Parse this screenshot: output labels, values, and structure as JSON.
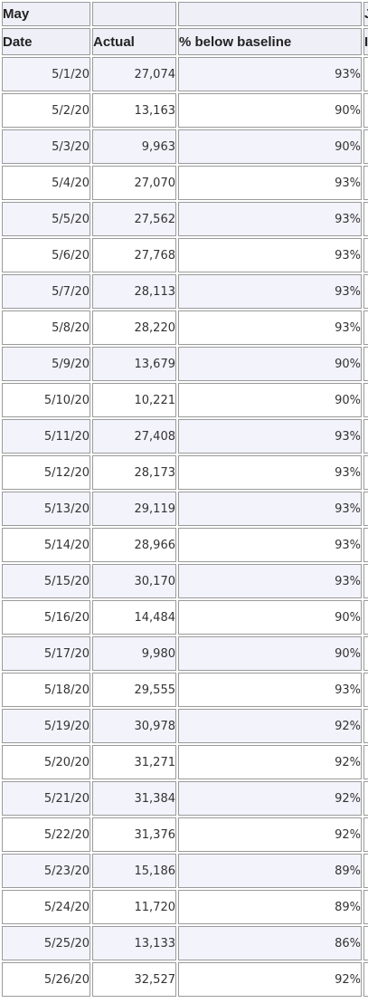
{
  "header": {
    "month": "May",
    "col_date": "Date",
    "col_actual": "Actual",
    "col_pct": "% below baseline",
    "extra_top": "J",
    "extra_bottom": "I"
  },
  "rows": [
    {
      "date": "5/1/20",
      "actual": "27,074",
      "pct": "93%"
    },
    {
      "date": "5/2/20",
      "actual": "13,163",
      "pct": "90%"
    },
    {
      "date": "5/3/20",
      "actual": "9,963",
      "pct": "90%"
    },
    {
      "date": "5/4/20",
      "actual": "27,070",
      "pct": "93%"
    },
    {
      "date": "5/5/20",
      "actual": "27,562",
      "pct": "93%"
    },
    {
      "date": "5/6/20",
      "actual": "27,768",
      "pct": "93%"
    },
    {
      "date": "5/7/20",
      "actual": "28,113",
      "pct": "93%"
    },
    {
      "date": "5/8/20",
      "actual": "28,220",
      "pct": "93%"
    },
    {
      "date": "5/9/20",
      "actual": "13,679",
      "pct": "90%"
    },
    {
      "date": "5/10/20",
      "actual": "10,221",
      "pct": "90%"
    },
    {
      "date": "5/11/20",
      "actual": "27,408",
      "pct": "93%"
    },
    {
      "date": "5/12/20",
      "actual": "28,173",
      "pct": "93%"
    },
    {
      "date": "5/13/20",
      "actual": "29,119",
      "pct": "93%"
    },
    {
      "date": "5/14/20",
      "actual": "28,966",
      "pct": "93%"
    },
    {
      "date": "5/15/20",
      "actual": "30,170",
      "pct": "93%"
    },
    {
      "date": "5/16/20",
      "actual": "14,484",
      "pct": "90%"
    },
    {
      "date": "5/17/20",
      "actual": "9,980",
      "pct": "90%"
    },
    {
      "date": "5/18/20",
      "actual": "29,555",
      "pct": "93%"
    },
    {
      "date": "5/19/20",
      "actual": "30,978",
      "pct": "92%"
    },
    {
      "date": "5/20/20",
      "actual": "31,271",
      "pct": "92%"
    },
    {
      "date": "5/21/20",
      "actual": "31,384",
      "pct": "92%"
    },
    {
      "date": "5/22/20",
      "actual": "31,376",
      "pct": "92%"
    },
    {
      "date": "5/23/20",
      "actual": "15,186",
      "pct": "89%"
    },
    {
      "date": "5/24/20",
      "actual": "11,720",
      "pct": "89%"
    },
    {
      "date": "5/25/20",
      "actual": "13,133",
      "pct": "86%"
    },
    {
      "date": "5/26/20",
      "actual": "32,527",
      "pct": "92%"
    }
  ]
}
